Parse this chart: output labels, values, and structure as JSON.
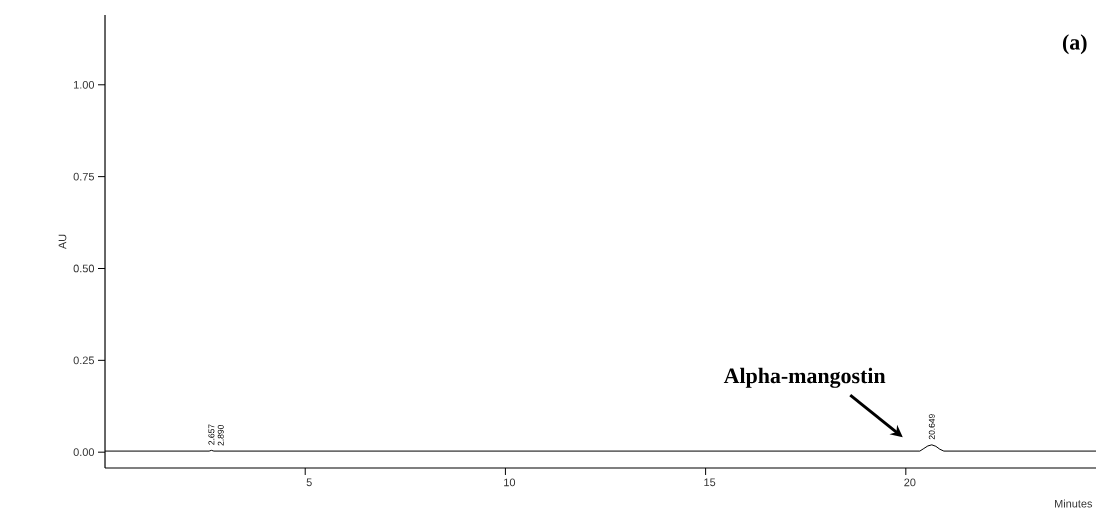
{
  "chart_data": {
    "type": "line",
    "xlabel": "Minutes",
    "ylabel": "AU",
    "xlim": [
      0,
      24.75
    ],
    "ylim": [
      -0.043,
      1.19
    ],
    "xticks": [
      5,
      10,
      15,
      20
    ],
    "yticks": [
      {
        "value": 0,
        "label": "0.00"
      },
      {
        "value": 0.25,
        "label": "0.25"
      },
      {
        "value": 0.5,
        "label": "0.50"
      },
      {
        "value": 0.75,
        "label": "0.75"
      },
      {
        "value": 1,
        "label": "1.00"
      }
    ],
    "series": [
      {
        "color": "#000000",
        "x": [
          0,
          2.6,
          2.657,
          2.72,
          20.35,
          20.45,
          20.55,
          20.649,
          20.75,
          20.85,
          20.95,
          24.75
        ],
        "values": [
          0.003,
          0.003,
          0.005,
          0.003,
          0.003,
          0.01,
          0.017,
          0.02,
          0.016,
          0.008,
          0.003,
          0.003
        ]
      }
    ],
    "line_style": "solid",
    "grid": false,
    "annotations": [
      "Alpha-mangostin",
      {
        "text": "2.657",
        "x": 2.657,
        "y": 0.005
      },
      {
        "text": "2.890",
        "x": 2.89,
        "y": 0.003
      },
      {
        "text": "20.649",
        "x": 20.649,
        "y": 0.02
      },
      "(a)"
    ]
  }
}
